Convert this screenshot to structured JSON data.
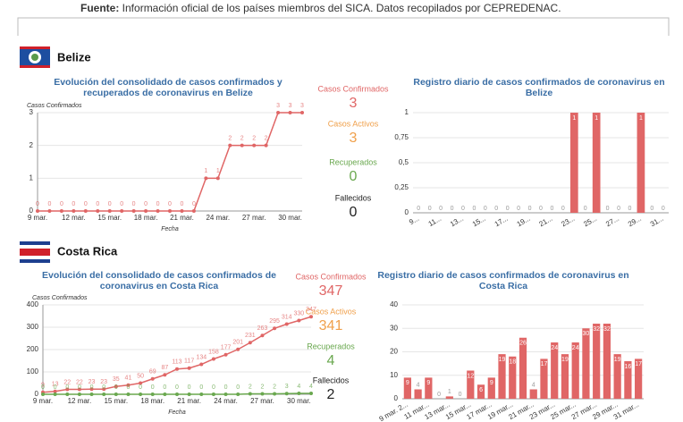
{
  "source": {
    "label": "Fuente:",
    "text": " Información oficial de los países miembros del SICA. Datos recopilados por CEPREDENAC."
  },
  "sections": [
    {
      "country": "Belize",
      "stats": [
        {
          "label": "Casos Confirmados",
          "value": 3,
          "color": "#e06666"
        },
        {
          "label": "Casos Activos",
          "value": 3,
          "color": "#f0a04b"
        },
        {
          "label": "Recuperados",
          "value": 0,
          "color": "#6aa84f"
        },
        {
          "label": "Fallecidos",
          "value": 0,
          "color": "#222222"
        }
      ]
    },
    {
      "country": "Costa Rica",
      "stats": [
        {
          "label": "Casos Confirmados",
          "value": 347,
          "color": "#e06666"
        },
        {
          "label": "Casos Activos",
          "value": 341,
          "color": "#f0a04b"
        },
        {
          "label": "Recuperados",
          "value": 4,
          "color": "#6aa84f"
        },
        {
          "label": "Fallecidos",
          "value": 2,
          "color": "#222222"
        }
      ]
    }
  ],
  "chart_data": [
    {
      "type": "line",
      "title": [
        "Evolución del consolidado de casos confirmados y",
        "recuperados de coronavirus en Belize"
      ],
      "ylabel": "Casos Confirmados",
      "xlabel": "Fecha",
      "categories": [
        "9 mar.",
        null,
        null,
        "12 mar.",
        null,
        null,
        "15 mar.",
        null,
        null,
        "18 mar.",
        null,
        null,
        "21 mar.",
        null,
        null,
        "24 mar.",
        null,
        null,
        "27 mar.",
        null,
        null,
        "30 mar.",
        null
      ],
      "series": [
        {
          "color": "#e06666",
          "values": [
            0,
            0,
            0,
            0,
            0,
            0,
            0,
            0,
            0,
            0,
            0,
            0,
            0,
            0,
            1,
            1,
            2,
            2,
            2,
            2,
            3,
            3,
            3
          ]
        }
      ],
      "ylim": [
        0,
        3
      ],
      "yticks": [
        0,
        1,
        2,
        3
      ],
      "grid": true
    },
    {
      "type": "bar",
      "title": [
        "Registro diario de casos confirmados de coronavirus en",
        "Belize"
      ],
      "categories": [
        "9...",
        null,
        "11...",
        null,
        "13...",
        null,
        "15...",
        null,
        "17...",
        null,
        "19...",
        null,
        "21...",
        null,
        "23...",
        null,
        "25...",
        null,
        "27...",
        null,
        "29...",
        null,
        "31..."
      ],
      "values": [
        0,
        0,
        0,
        0,
        0,
        0,
        0,
        0,
        0,
        0,
        0,
        0,
        0,
        0,
        1,
        0,
        1,
        0,
        0,
        0,
        1,
        0,
        0
      ],
      "color": "#e06666",
      "ylim": [
        0,
        1
      ],
      "yticks": [
        0,
        {
          "value": 0.25,
          "label": "0,25"
        },
        {
          "value": 0.5,
          "label": "0,5"
        },
        {
          "value": 0.75,
          "label": "0,75"
        },
        1
      ],
      "grid": true
    },
    {
      "type": "line",
      "title": [
        "Evolución del consolidado de casos confirmados de",
        "coronavirus en Costa Rica"
      ],
      "ylabel": "Casos Confirmados",
      "xlabel": "Fecha",
      "categories": [
        "9 mar.",
        null,
        null,
        "12 mar.",
        null,
        null,
        "15 mar.",
        null,
        null,
        "18 mar.",
        null,
        null,
        "21 mar.",
        null,
        null,
        "24 mar.",
        null,
        null,
        "27 mar.",
        null,
        null,
        "30 mar.",
        null
      ],
      "series": [
        {
          "color": "#e06666",
          "values": [
            9,
            13,
            22,
            22,
            23,
            23,
            35,
            41,
            50,
            69,
            87,
            113,
            117,
            134,
            158,
            177,
            201,
            231,
            263,
            295,
            314,
            330,
            347
          ]
        },
        {
          "color": "#6aa84f",
          "values": [
            0,
            0,
            0,
            0,
            0,
            0,
            0,
            0,
            0,
            0,
            0,
            0,
            0,
            0,
            0,
            0,
            0,
            2,
            2,
            2,
            3,
            4,
            4
          ]
        }
      ],
      "ylim": [
        0,
        400
      ],
      "yticks": [
        0,
        100,
        200,
        300,
        400
      ],
      "grid": true
    },
    {
      "type": "bar",
      "title": [
        "Registro diario de casos confirmados de coronavirus en",
        "Costa Rica"
      ],
      "categories": [
        "9 mar. 2...",
        null,
        "11 mar...",
        null,
        "13 mar...",
        null,
        "15 mar...",
        null,
        "17 mar...",
        null,
        "19 mar...",
        null,
        "21 mar...",
        null,
        "23 mar...",
        null,
        "25 mar...",
        null,
        "27 mar...",
        null,
        "29 mar...",
        null,
        "31 mar..."
      ],
      "values": [
        9,
        4,
        9,
        0,
        1,
        0,
        12,
        6,
        9,
        19,
        18,
        26,
        4,
        17,
        24,
        19,
        24,
        30,
        32,
        32,
        19,
        16,
        17
      ],
      "color": "#e06666",
      "ylim": [
        0,
        40
      ],
      "yticks": [
        0,
        10,
        20,
        30,
        40
      ],
      "grid": true
    }
  ]
}
